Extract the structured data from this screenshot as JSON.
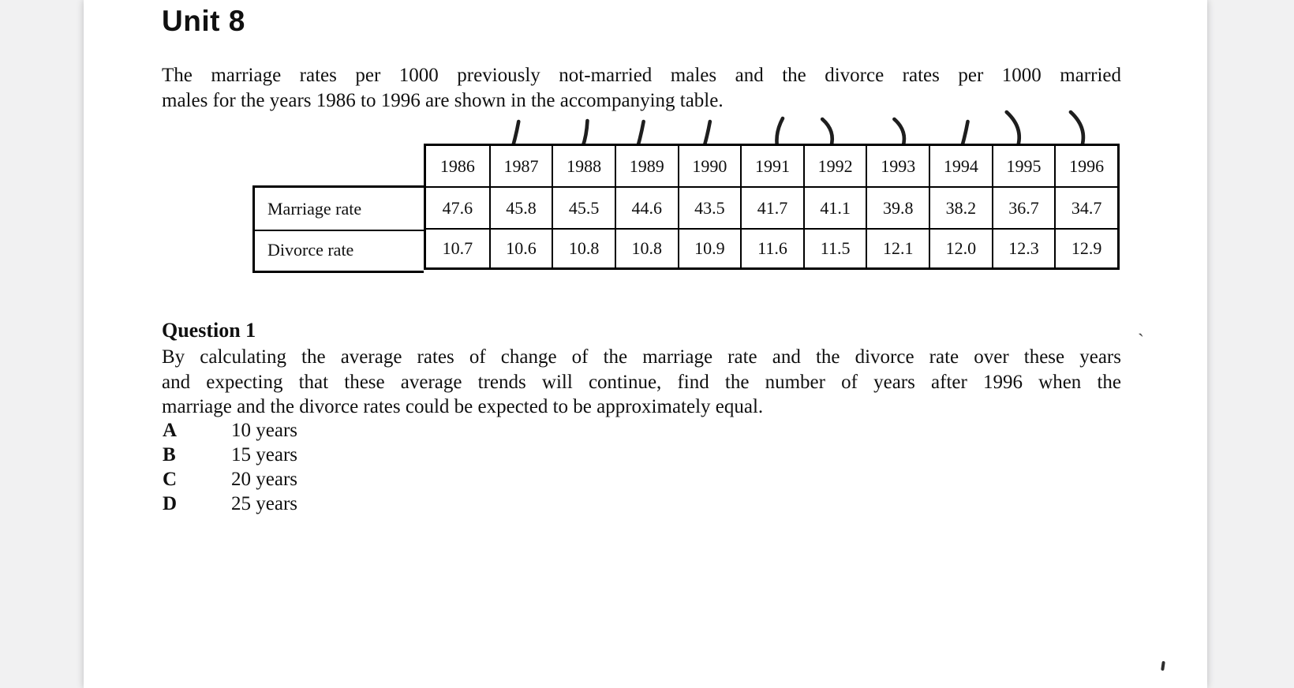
{
  "colors": {
    "paper": "#ffffff",
    "backdrop": "#f1f1f2",
    "ink": "#101010",
    "table_border": "#000000",
    "pen_ink": "#0d0d0d"
  },
  "doc": {
    "unit_title": "Unit 8",
    "intro_lines": [
      "The marriage rates per 1000 previously not-married males and the divorce rates per 1000 married",
      "males for the years 1986 to 1996 are shown in the accompanying table."
    ]
  },
  "table": {
    "years": [
      "1986",
      "1987",
      "1988",
      "1989",
      "1990",
      "1991",
      "1992",
      "1993",
      "1994",
      "1995",
      "1996"
    ],
    "rows": [
      {
        "label": "Marriage rate",
        "values": [
          "47.6",
          "45.8",
          "45.5",
          "44.6",
          "43.5",
          "41.7",
          "41.1",
          "39.8",
          "38.2",
          "36.7",
          "34.7"
        ]
      },
      {
        "label": "Divorce rate",
        "values": [
          "10.7",
          "10.6",
          "10.8",
          "10.8",
          "10.9",
          "11.6",
          "11.5",
          "12.1",
          "12.0",
          "12.3",
          "12.9"
        ]
      }
    ],
    "tick_marks": [
      {
        "year": "1987",
        "shape": "slash"
      },
      {
        "year": "1988",
        "shape": "slash-hook"
      },
      {
        "year": "1989",
        "shape": "slash"
      },
      {
        "year": "1990",
        "shape": "slash"
      },
      {
        "year": "1991",
        "shape": "paren-left"
      },
      {
        "year": "1992",
        "shape": "curve"
      },
      {
        "year": "1993",
        "shape": "curve"
      },
      {
        "year": "1994",
        "shape": "slash"
      },
      {
        "year": "1995",
        "shape": "curve-tall"
      },
      {
        "year": "1996",
        "shape": "curve-tall"
      }
    ]
  },
  "question": {
    "heading": "Question 1",
    "lines": [
      "By calculating the average rates of change of the marriage rate and the divorce rate over these years",
      "and expecting that these average trends will continue, find the number of years after 1996 when the",
      "marriage and the divorce rates could be expected to be approximately equal."
    ],
    "options": [
      {
        "letter": "A",
        "text": "10 years"
      },
      {
        "letter": "B",
        "text": "15 years"
      },
      {
        "letter": "C",
        "text": "20 years"
      },
      {
        "letter": "D",
        "text": "25 years"
      }
    ]
  },
  "scan_artifacts": {
    "stray_mark": "`"
  }
}
